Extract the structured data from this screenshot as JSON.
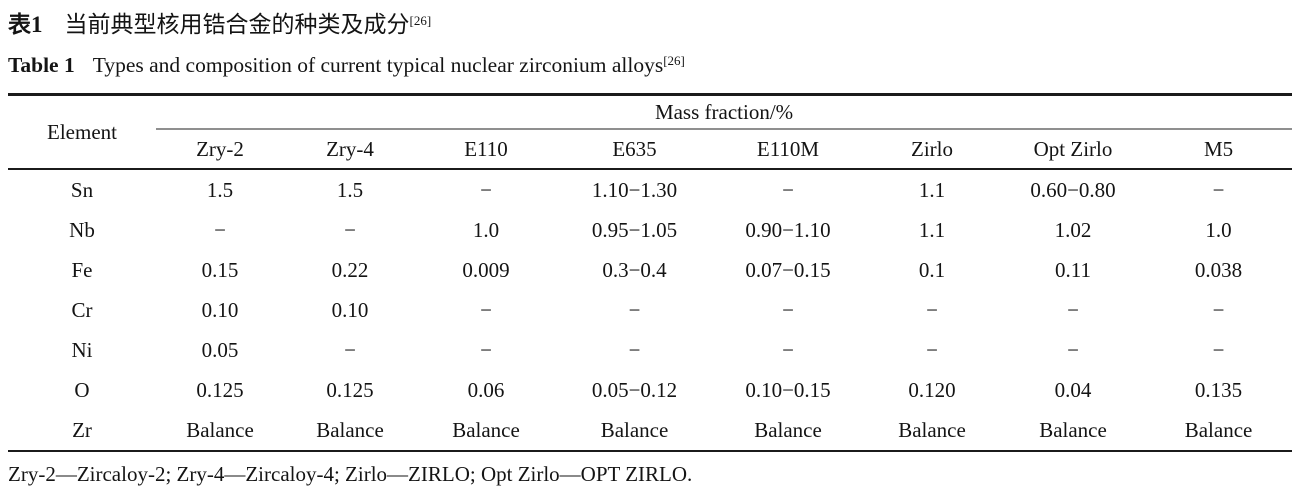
{
  "title": {
    "zh_label": "表1",
    "zh_text": "当前典型核用锆合金的种类及成分",
    "zh_ref": "[26]",
    "en_label": "Table 1",
    "en_text": "Types and composition of current typical nuclear zirconium alloys",
    "en_ref": "[26]"
  },
  "table": {
    "element_header": "Element",
    "group_header": "Mass fraction/%",
    "columns": [
      "Zry-2",
      "Zry-4",
      "E110",
      "E635",
      "E110M",
      "Zirlo",
      "Opt Zirlo",
      "M5"
    ],
    "rows": [
      {
        "element": "Sn",
        "values": [
          "1.5",
          "1.5",
          "−",
          "1.10−1.30",
          "−",
          "1.1",
          "0.60−0.80",
          "−"
        ]
      },
      {
        "element": "Nb",
        "values": [
          "−",
          "−",
          "1.0",
          "0.95−1.05",
          "0.90−1.10",
          "1.1",
          "1.02",
          "1.0"
        ]
      },
      {
        "element": "Fe",
        "values": [
          "0.15",
          "0.22",
          "0.009",
          "0.3−0.4",
          "0.07−0.15",
          "0.1",
          "0.11",
          "0.038"
        ]
      },
      {
        "element": "Cr",
        "values": [
          "0.10",
          "0.10",
          "−",
          "−",
          "−",
          "−",
          "−",
          "−"
        ]
      },
      {
        "element": "Ni",
        "values": [
          "0.05",
          "−",
          "−",
          "−",
          "−",
          "−",
          "−",
          "−"
        ]
      },
      {
        "element": "O",
        "values": [
          "0.125",
          "0.125",
          "0.06",
          "0.05−0.12",
          "0.10−0.15",
          "0.120",
          "0.04",
          "0.135"
        ]
      },
      {
        "element": "Zr",
        "values": [
          "Balance",
          "Balance",
          "Balance",
          "Balance",
          "Balance",
          "Balance",
          "Balance",
          "Balance"
        ]
      }
    ]
  },
  "footnote": "Zry-2—Zircaloy-2; Zry-4—Zircaloy-4; Zirlo—ZIRLO; Opt Zirlo—OPT ZIRLO.",
  "colors": {
    "text": "#141414",
    "rule_dark": "#1b1b1b",
    "rule_gray": "#8f8f8f",
    "background": "#ffffff"
  }
}
